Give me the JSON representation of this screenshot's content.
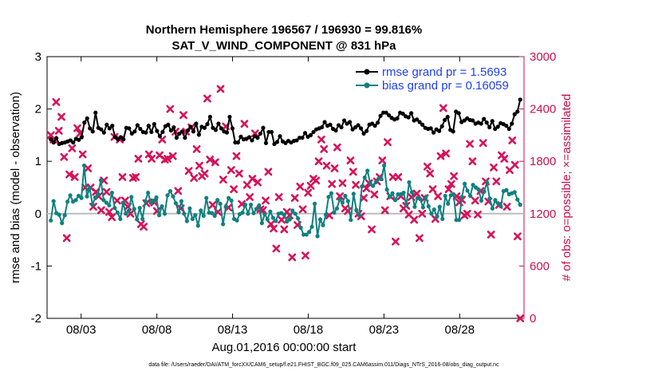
{
  "chart_data": {
    "type": "line",
    "title_line1": "Northern Hemisphere 196567 / 196930 = 99.816%",
    "title_line2": "SAT_V_WIND_COMPONENT @ 831 hPa",
    "xlabel": "Aug.01,2016 00:00:00 start",
    "ylabel_left": "rmse and bias (model - observation)",
    "ylabel_right": "# of obs: o=possible; ×=assimilated",
    "footnote": "data file: /Users/raeder/DAI/ATM_forcXX/CAM6_setup/f.e21.FHIST_BGC.f09_025.CAM6assim.011/Diags_NTrS_2016-08/obs_diag_output.nc",
    "xlim": [
      0.75,
      32.25
    ],
    "ylim_left": [
      -2,
      3
    ],
    "ylim_right": [
      0,
      3000
    ],
    "x_ticks": [
      3,
      8,
      13,
      18,
      23,
      28
    ],
    "x_tick_labels": [
      "08/03",
      "08/08",
      "08/13",
      "08/18",
      "08/23",
      "08/28"
    ],
    "y_ticks_left": [
      -2,
      -1,
      0,
      1,
      2,
      3
    ],
    "y_tick_labels_left": [
      "-2",
      "-1",
      "0",
      "1",
      "2",
      "3"
    ],
    "y_ticks_right": [
      0,
      600,
      1200,
      1800,
      2400,
      3000
    ],
    "y_tick_labels_right": [
      "0",
      "600",
      "1200",
      "1800",
      "2400",
      "3000"
    ],
    "colors": {
      "rmse": "#000000",
      "bias": "#0f8080",
      "obs": "#d6135a",
      "zero_line": "#bdbdbd",
      "legend_text": "#1f3ff0"
    },
    "series": [
      {
        "name": "rmse grand pr = 1.5693",
        "key": "rmse",
        "values": [
          1.42,
          1.36,
          1.44,
          1.33,
          1.35,
          1.36,
          1.38,
          1.4,
          1.36,
          1.43,
          1.41,
          1.46,
          1.74,
          1.82,
          1.63,
          1.57,
          1.93,
          1.64,
          1.61,
          1.55,
          1.7,
          1.63,
          1.68,
          1.46,
          1.42,
          1.46,
          1.42,
          1.64,
          1.63,
          1.53,
          1.57,
          1.69,
          1.62,
          1.56,
          1.55,
          1.68,
          1.56,
          1.71,
          1.58,
          1.48,
          1.56,
          1.67,
          1.7,
          1.59,
          1.65,
          1.45,
          1.53,
          1.57,
          1.45,
          1.59,
          1.66,
          1.57,
          1.72,
          1.51,
          1.66,
          1.64,
          1.71,
          1.85,
          1.64,
          1.6,
          1.72,
          1.63,
          1.57,
          1.55,
          1.85,
          1.63,
          1.36,
          1.36,
          1.47,
          1.42,
          1.43,
          1.46,
          1.4,
          1.48,
          1.45,
          1.53,
          1.64,
          1.35,
          1.56,
          1.56,
          1.33,
          1.37,
          1.48,
          1.38,
          1.35,
          1.39,
          1.36,
          1.39,
          1.4,
          1.45,
          1.45,
          1.54,
          1.47,
          1.5,
          1.56,
          1.61,
          1.63,
          1.65,
          1.75,
          1.68,
          1.7,
          1.62,
          1.59,
          1.69,
          1.65,
          1.78,
          1.72,
          1.75,
          1.61,
          1.65,
          1.69,
          1.63,
          1.53,
          1.58,
          1.7,
          1.72,
          1.68,
          1.74,
          1.87,
          1.93,
          1.93,
          1.88,
          1.83,
          1.8,
          1.82,
          1.93,
          1.91,
          1.86,
          1.84,
          1.92,
          1.78,
          1.8,
          1.75,
          1.7,
          1.64,
          1.62,
          1.63,
          1.55,
          1.61,
          1.58,
          1.67,
          1.79,
          1.85,
          1.6,
          1.57,
          1.95,
          1.92,
          1.75,
          1.78,
          1.82,
          1.79,
          1.78,
          1.72,
          1.74,
          1.72,
          1.81,
          1.74,
          1.65,
          1.77,
          1.62,
          1.66,
          1.73,
          1.71,
          1.68,
          1.62,
          1.72,
          1.9,
          1.95,
          2.18
        ],
        "marker": "circle"
      },
      {
        "name": "bias grand pr = 0.16059",
        "key": "bias",
        "values": [
          -0.13,
          0.24,
          0.01,
          -0.02,
          -0.18,
          -0.03,
          0.23,
          0.35,
          0.23,
          0.26,
          0.34,
          0.3,
          0.92,
          0.33,
          0.49,
          0.17,
          0.31,
          0.37,
          0.64,
          0.26,
          0.21,
          0.16,
          0.4,
          0.11,
          0.02,
          -0.1,
          0.21,
          0.0,
          0.05,
          0.32,
          0.09,
          -0.11,
          0.11,
          -0.1,
          0.24,
          0.4,
          0.21,
          0.25,
          0.31,
          -0.03,
          0.14,
          0.0,
          0.35,
          0.43,
          0.33,
          0.2,
          0.03,
          0.24,
          0.0,
          -0.14,
          0.1,
          -0.1,
          -0.03,
          -0.23,
          0.06,
          -0.04,
          0.3,
          0.02,
          0.01,
          -0.04,
          0.26,
          0.19,
          -0.2,
          0.13,
          0.3,
          0.25,
          -0.1,
          -0.13,
          -0.01,
          0.02,
          0.17,
          0.0,
          0.17,
          0.01,
          0.09,
          0.16,
          -0.18,
          -0.01,
          -0.11,
          0.04,
          -0.08,
          -0.14,
          0.0,
          0.01,
          -0.02,
          -0.15,
          -0.11,
          0.06,
          0.0,
          -0.09,
          -0.27,
          -0.4,
          -0.4,
          -0.35,
          -0.25,
          0.19,
          -0.43,
          -0.11,
          -0.22,
          -0.02,
          0.32,
          0.39,
          0.02,
          0.1,
          0.27,
          0.21,
          0.34,
          0.24,
          -0.12,
          0.38,
          0.07,
          -0.03,
          0.52,
          0.69,
          0.82,
          0.58,
          0.53,
          0.6,
          0.67,
          0.66,
          0.92,
          0.46,
          0.32,
          0.39,
          0.26,
          0.37,
          0.37,
          0.4,
          0.16,
          0.6,
          0.41,
          0.13,
          0.3,
          0.28,
          0.12,
          0.32,
          0.14,
          0.0,
          0.08,
          -0.06,
          0.13,
          -0.1,
          0.34,
          0.19,
          0.35,
          0.37,
          -0.12,
          -0.12,
          0.32,
          0.57,
          0.44,
          0.34,
          0.55,
          0.5,
          0.46,
          0.25,
          0.42,
          0.6,
          0.29,
          0.1,
          0.26,
          0.2,
          0.14,
          0.43,
          0.45,
          0.37,
          0.39,
          0.41,
          0.27,
          0.17
        ],
        "marker": "circle"
      },
      {
        "name": "obs assimilated",
        "key": "obs",
        "axis": "right",
        "values": [
          2100,
          2050,
          2480,
          2150,
          2310,
          1850,
          920,
          1650,
          1950,
          1620,
          2180,
          2120,
          1880,
          1500,
          1720,
          1500,
          1280,
          1450,
          1400,
          1240,
          1580,
          1450,
          1220,
          1160,
          2080,
          1350,
          2050,
          1620,
          1350,
          1280,
          1200,
          1610,
          1620,
          1830,
          1080,
          1050,
          1320,
          1880,
          1830,
          1330,
          1230,
          1870,
          2050,
          1820,
          1830,
          2400,
          1860,
          2140,
          1460,
          1260,
          2330,
          2140,
          1690,
          2190,
          1610,
          1940,
          1750,
          1630,
          1660,
          2520,
          1820,
          1300,
          1790,
          1220,
          2630,
          1590,
          2200,
          1270,
          1700,
          1480,
          1860,
          1660,
          1310,
          2230,
          1530,
          1390,
          1600,
          2120,
          1560,
          1250,
          1240,
          1350,
          1680,
          1080,
          1030,
          800,
          1390,
          1130,
          1020,
          1220,
          1180,
          700,
          1380,
          1070,
          1510,
          1250,
          720,
          1440,
          1520,
          1600,
          1580,
          1800,
          2050,
          1940,
          1750,
          1180,
          1540,
          1720,
          1960,
          1400,
          1550,
          1260,
          1230,
          1810,
          1680,
          1530,
          1200,
          1170,
          1380,
          1490,
          1550,
          1020,
          1420,
          1570,
          1620,
          1810,
          1240,
          2020,
          1400,
          1620,
          880,
          1620,
          1400,
          1260,
          1290,
          1190,
          1390,
          1130,
          1430,
          920,
          1200,
          1380,
          1740,
          1660,
          1480,
          1140,
          1400,
          1860,
          2410,
          1890,
          1480,
          1540,
          1630,
          1400,
          1330,
          1360,
          1180,
          1200,
          2000,
          1800,
          1350,
          1190,
          1460,
          2010,
          1570,
          1340,
          960,
          1730,
          1570,
          1300,
          1870,
          1830,
          1280,
          1700,
          2040,
          1760,
          940,
          0
        ]
      }
    ],
    "zero_line": 0,
    "legend_position": "top-right"
  }
}
